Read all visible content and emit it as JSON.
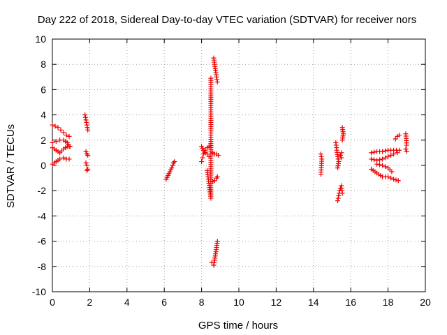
{
  "chart_data": {
    "type": "scatter",
    "title": "Day 222 of 2018, Sidereal Day-to-day VTEC variation (SDTVAR) for receiver nors",
    "xlabel": "GPS time / hours",
    "ylabel": "SDTVAR / TECUs",
    "xlim": [
      0,
      20
    ],
    "ylim": [
      -10,
      10
    ],
    "xticks": [
      0,
      2,
      4,
      6,
      8,
      10,
      12,
      14,
      16,
      18,
      20
    ],
    "yticks": [
      -10,
      -8,
      -6,
      -4,
      -2,
      0,
      2,
      4,
      6,
      8,
      10
    ],
    "xtick_labels": [
      "0",
      "2",
      "4",
      "6",
      "8",
      "10",
      "12",
      "14",
      "16",
      "18",
      "20"
    ],
    "ytick_labels": [
      "-10",
      "-8",
      "-6",
      "-4",
      "-2",
      "0",
      "2",
      "4",
      "6",
      "8",
      "10"
    ],
    "grid": true,
    "marker": "+",
    "marker_color": "#ee0000",
    "series": [
      {
        "name": "arc-0.0-high",
        "segments": [
          [
            [
              0.0,
              3.2
            ],
            [
              0.15,
              3.1
            ],
            [
              0.3,
              3.0
            ],
            [
              0.45,
              2.8
            ],
            [
              0.6,
              2.6
            ],
            [
              0.75,
              2.4
            ],
            [
              0.9,
              2.3
            ]
          ]
        ]
      },
      {
        "name": "arc-0.0-mid",
        "segments": [
          [
            [
              0.0,
              1.8
            ],
            [
              0.2,
              1.9
            ],
            [
              0.4,
              2.0
            ],
            [
              0.6,
              2.0
            ],
            [
              0.8,
              1.8
            ],
            [
              0.9,
              1.5
            ]
          ]
        ]
      },
      {
        "name": "arc-0.0-mid2",
        "segments": [
          [
            [
              0.0,
              1.4
            ],
            [
              0.2,
              1.2
            ],
            [
              0.4,
              1.0
            ],
            [
              0.6,
              1.3
            ],
            [
              0.8,
              1.5
            ],
            [
              0.95,
              1.5
            ]
          ]
        ]
      },
      {
        "name": "arc-0.0-low",
        "segments": [
          [
            [
              0.0,
              0.1
            ],
            [
              0.2,
              0.3
            ],
            [
              0.4,
              0.5
            ],
            [
              0.6,
              0.6
            ],
            [
              0.75,
              0.5
            ],
            [
              0.9,
              0.5
            ]
          ]
        ]
      },
      {
        "name": "arc-1.8-a",
        "segments": [
          [
            [
              1.75,
              4.0
            ],
            [
              1.8,
              3.6
            ],
            [
              1.85,
              3.2
            ],
            [
              1.9,
              2.8
            ]
          ]
        ]
      },
      {
        "name": "arc-1.8-b",
        "segments": [
          [
            [
              1.8,
              1.1
            ],
            [
              1.85,
              0.9
            ],
            [
              1.9,
              0.8
            ]
          ]
        ]
      },
      {
        "name": "arc-1.8-c",
        "segments": [
          [
            [
              1.8,
              0.2
            ],
            [
              1.85,
              0.0
            ],
            [
              1.9,
              -0.3
            ],
            [
              1.85,
              -0.4
            ]
          ]
        ]
      },
      {
        "name": "arc-6.3",
        "segments": [
          [
            [
              6.1,
              -1.1
            ],
            [
              6.2,
              -0.8
            ],
            [
              6.3,
              -0.5
            ],
            [
              6.4,
              -0.2
            ],
            [
              6.5,
              0.2
            ],
            [
              6.55,
              0.3
            ]
          ]
        ]
      },
      {
        "name": "arc-8.2-a",
        "segments": [
          [
            [
              8.0,
              0.3
            ],
            [
              8.05,
              0.6
            ],
            [
              8.1,
              0.9
            ],
            [
              8.2,
              1.2
            ],
            [
              8.3,
              1.4
            ],
            [
              8.4,
              1.5
            ]
          ]
        ]
      },
      {
        "name": "arc-8.2-b",
        "segments": [
          [
            [
              8.0,
              1.5
            ],
            [
              8.1,
              1.2
            ],
            [
              8.2,
              1.0
            ],
            [
              8.3,
              0.9
            ],
            [
              8.4,
              0.7
            ]
          ]
        ]
      },
      {
        "name": "arc-8.7",
        "segments": [
          [
            [
              8.6,
              1.0
            ],
            [
              8.7,
              0.9
            ],
            [
              8.8,
              0.9
            ],
            [
              8.9,
              0.8
            ]
          ]
        ]
      },
      {
        "name": "arc-8.8-neg",
        "segments": [
          [
            [
              8.5,
              -1.1
            ],
            [
              8.6,
              -1.3
            ],
            [
              8.7,
              -1.2
            ],
            [
              8.8,
              -1.0
            ],
            [
              8.85,
              -0.9
            ]
          ]
        ]
      },
      {
        "name": "arc-8.3-single",
        "segments": [
          [
            [
              8.3,
              -0.4
            ],
            [
              8.5,
              -2.6
            ],
            [
              8.5,
              6.9
            ]
          ]
        ]
      },
      {
        "name": "arc-8.8-top",
        "segments": [
          [
            [
              8.65,
              8.5
            ],
            [
              8.7,
              8.0
            ],
            [
              8.75,
              7.5
            ],
            [
              8.8,
              7.0
            ],
            [
              8.85,
              6.6
            ]
          ]
        ]
      },
      {
        "name": "arc-8.8-bot",
        "segments": [
          [
            [
              8.55,
              -7.7
            ],
            [
              8.65,
              -7.9
            ],
            [
              8.7,
              -7.5
            ],
            [
              8.75,
              -7.0
            ],
            [
              8.8,
              -6.5
            ],
            [
              8.85,
              -6.0
            ]
          ]
        ]
      },
      {
        "name": "arc-14.5",
        "segments": [
          [
            [
              14.4,
              0.9
            ],
            [
              14.45,
              0.5
            ],
            [
              14.4,
              -0.7
            ]
          ]
        ]
      },
      {
        "name": "arc-15.3-a",
        "segments": [
          [
            [
              15.2,
              1.8
            ],
            [
              15.25,
              1.2
            ],
            [
              15.3,
              0.7
            ],
            [
              15.35,
              0.3
            ],
            [
              15.3,
              -0.2
            ]
          ]
        ]
      },
      {
        "name": "arc-15.3-b",
        "segments": [
          [
            [
              15.5,
              1.0
            ],
            [
              15.45,
              0.8
            ],
            [
              15.5,
              0.6
            ]
          ]
        ]
      },
      {
        "name": "arc-15.3-c",
        "segments": [
          [
            [
              15.3,
              -2.8
            ],
            [
              15.35,
              -2.4
            ],
            [
              15.4,
              -2.0
            ],
            [
              15.5,
              -1.6
            ],
            [
              15.55,
              -2.2
            ]
          ]
        ]
      },
      {
        "name": "arc-15.6-high",
        "segments": [
          [
            [
              15.55,
              3.0
            ],
            [
              15.6,
              2.5
            ],
            [
              15.55,
              2.0
            ]
          ]
        ]
      },
      {
        "name": "arc-17.5-a",
        "segments": [
          [
            [
              17.1,
              1.0
            ],
            [
              17.4,
              1.1
            ],
            [
              17.7,
              1.1
            ],
            [
              18.0,
              1.2
            ],
            [
              18.3,
              1.2
            ],
            [
              18.6,
              1.2
            ]
          ]
        ]
      },
      {
        "name": "arc-17.5-b",
        "segments": [
          [
            [
              17.1,
              0.5
            ],
            [
              17.4,
              0.4
            ],
            [
              17.7,
              0.5
            ],
            [
              18.0,
              0.7
            ],
            [
              18.3,
              0.9
            ],
            [
              18.5,
              1.0
            ]
          ]
        ]
      },
      {
        "name": "arc-17.5-c",
        "segments": [
          [
            [
              17.1,
              -0.3
            ],
            [
              17.4,
              -0.6
            ],
            [
              17.7,
              -0.9
            ],
            [
              18.0,
              -0.9
            ],
            [
              18.3,
              -1.1
            ],
            [
              18.55,
              -1.2
            ]
          ]
        ]
      },
      {
        "name": "arc-17.5-d",
        "segments": [
          [
            [
              17.4,
              0.1
            ],
            [
              17.7,
              0.0
            ],
            [
              18.0,
              -0.2
            ],
            [
              18.2,
              -0.5
            ]
          ]
        ]
      },
      {
        "name": "arc-18.5-e",
        "segments": [
          [
            [
              18.4,
              2.1
            ],
            [
              18.5,
              2.3
            ],
            [
              18.6,
              2.4
            ]
          ]
        ]
      },
      {
        "name": "arc-19",
        "segments": [
          [
            [
              18.95,
              2.5
            ],
            [
              19.0,
              1.6
            ],
            [
              18.95,
              1.3
            ],
            [
              19.0,
              1.1
            ]
          ]
        ]
      }
    ]
  }
}
